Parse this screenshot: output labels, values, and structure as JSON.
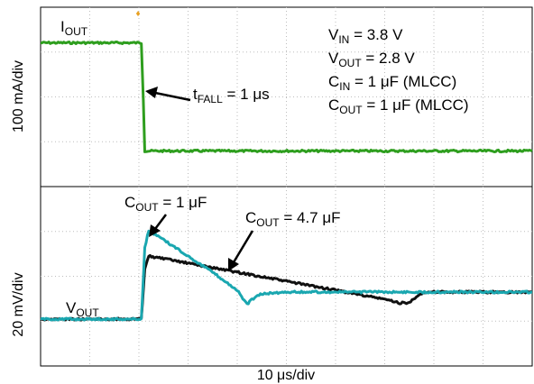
{
  "chart_data": {
    "type": "line",
    "x_axis": {
      "label": "10 μs/div",
      "divisions": 10,
      "range_us": [
        0,
        100
      ]
    },
    "top_panel": {
      "ylabel": "100 mA/div",
      "trace_label": {
        "main": "I",
        "sub": "OUT"
      },
      "series": [
        {
          "name": "IOUT",
          "color": "#2e9e1e",
          "x_us": [
            0,
            20.5,
            20.9,
            21.2,
            100
          ],
          "y_div": [
            2.45,
            2.45,
            1.2,
            0.05,
            0.05
          ]
        }
      ],
      "annotation": {
        "main": "t",
        "sub": "FALL",
        "rest": " = 1 μs"
      },
      "conditions": [
        {
          "main": "V",
          "sub": "IN",
          "rest": " = 3.8 V"
        },
        {
          "main": "V",
          "sub": "OUT",
          "rest": " = 2.8 V"
        },
        {
          "main": "C",
          "sub": "IN",
          "rest": " = 1 μF (MLCC)"
        },
        {
          "main": "C",
          "sub": "OUT",
          "rest": " = 1 μF (MLCC)"
        }
      ]
    },
    "bottom_panel": {
      "ylabel": "20 mV/div",
      "trace_label": {
        "main": "V",
        "sub": "OUT"
      },
      "series": [
        {
          "name": "COUT = 4.7 μF",
          "color": "#111111",
          "x_us": [
            0,
            20.5,
            21.2,
            22,
            30,
            40,
            50,
            60,
            70,
            73,
            75,
            77,
            80,
            100
          ],
          "y_div": [
            0,
            0,
            1.4,
            1.75,
            1.55,
            1.3,
            1.05,
            0.8,
            0.55,
            0.45,
            0.45,
            0.7,
            0.75,
            0.75
          ]
        },
        {
          "name": "COUT = 1 μF",
          "color": "#1aa7b0",
          "x_us": [
            0,
            20.5,
            21.2,
            22,
            25,
            30,
            35,
            40,
            42,
            43,
            45,
            50,
            60,
            80,
            100
          ],
          "y_div": [
            0,
            0,
            2.0,
            2.45,
            2.2,
            1.75,
            1.3,
            0.8,
            0.4,
            0.55,
            0.7,
            0.75,
            0.75,
            0.75,
            0.75
          ]
        }
      ],
      "labels": [
        {
          "main": "C",
          "sub": "OUT",
          "rest": " = 1 μF"
        },
        {
          "main": "C",
          "sub": "OUT",
          "rest": " = 4.7 μF"
        }
      ]
    },
    "grid": true,
    "trigger_marker": "♦"
  }
}
